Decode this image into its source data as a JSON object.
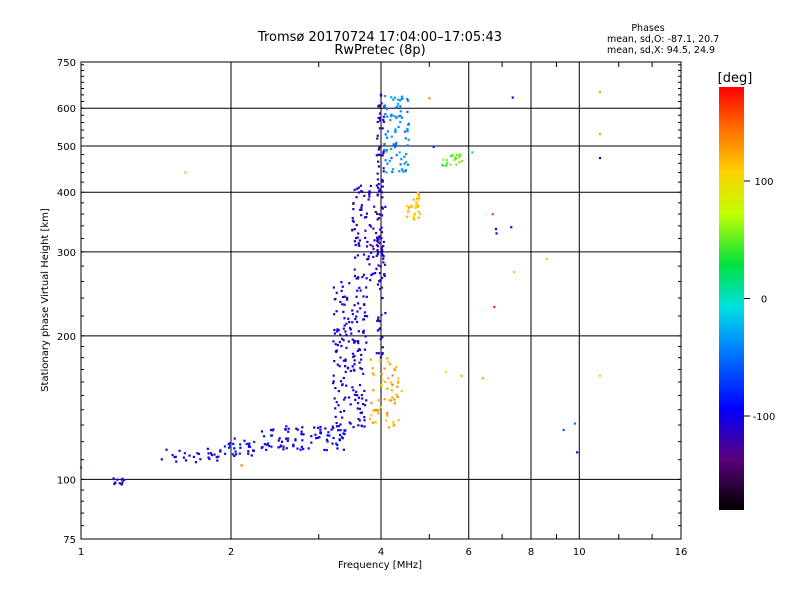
{
  "chart_data": {
    "type": "scatter",
    "title": "Tromsø 20170724 17:04:00–17:05:43",
    "subtitle": "RwPretec (8p)",
    "xlabel": "Frequency [MHz]",
    "ylabel": "Stationary phase Virtual Height [km]",
    "xscale": "log",
    "yscale": "log",
    "xlim": [
      1,
      16
    ],
    "ylim": [
      75,
      750
    ],
    "xticks": [
      1,
      2,
      4,
      6,
      8,
      10,
      16
    ],
    "yticks": [
      75,
      100,
      200,
      300,
      400,
      500,
      600,
      750
    ],
    "grid": true,
    "stats_box": {
      "heading": "Phases",
      "line_o": "mean, sd,O: -87.1, 20.7",
      "line_x": "mean, sd,X:  94.5, 24.9"
    },
    "colorbar": {
      "label": "[deg]",
      "range": [
        -180,
        180
      ],
      "ticks": [
        100,
        0,
        -100
      ]
    },
    "point_clusters": [
      {
        "name": "low-freq echoes",
        "fmin": 1.15,
        "fmax": 1.22,
        "hmin": 97,
        "hmax": 101,
        "phase": -110,
        "count": 12
      },
      {
        "name": "f-trace low band",
        "fmin": 1.45,
        "fmax": 1.9,
        "hmin": 108,
        "hmax": 116,
        "phase": -105,
        "count": 26
      },
      {
        "name": "f-trace 2 MHz",
        "fmin": 1.9,
        "fmax": 2.3,
        "hmin": 112,
        "hmax": 122,
        "phase": -95,
        "count": 30
      },
      {
        "name": "f-trace rising",
        "fmin": 2.3,
        "fmax": 3.4,
        "hmin": 115,
        "hmax": 130,
        "phase": -100,
        "count": 90
      },
      {
        "name": "cusp region",
        "fmin": 3.2,
        "fmax": 3.75,
        "hmin": 128,
        "hmax": 260,
        "phase": -110,
        "count": 170
      },
      {
        "name": "upper F trace",
        "fmin": 3.5,
        "fmax": 4.05,
        "hmin": 260,
        "hmax": 420,
        "phase": -115,
        "count": 110
      },
      {
        "name": "4 MHz vertical",
        "fmin": 3.92,
        "fmax": 4.08,
        "hmin": 180,
        "hmax": 650,
        "phase": -115,
        "count": 90
      },
      {
        "name": "x-mode 4.4 MHz",
        "fmin": 4.05,
        "fmax": 4.55,
        "hmin": 440,
        "hmax": 640,
        "phase": -40,
        "count": 80
      },
      {
        "name": "x-mode 4.6 MHz",
        "fmin": 4.5,
        "fmax": 4.8,
        "hmin": 350,
        "hmax": 400,
        "phase": 110,
        "count": 30
      },
      {
        "name": "x-mode lower band",
        "fmin": 3.8,
        "fmax": 4.4,
        "hmin": 128,
        "hmax": 180,
        "phase": 120,
        "count": 60
      },
      {
        "name": "scatter 5-6 MHz",
        "fmin": 5.3,
        "fmax": 5.9,
        "hmin": 455,
        "hmax": 480,
        "phase": 45,
        "count": 20
      }
    ],
    "isolated_points": [
      {
        "f": 1.62,
        "h": 440,
        "phase": 60
      },
      {
        "f": 1.0,
        "h": 106,
        "phase": 150
      },
      {
        "f": 2.1,
        "h": 107,
        "phase": 140
      },
      {
        "f": 5.1,
        "h": 498,
        "phase": -80
      },
      {
        "f": 5.0,
        "h": 630,
        "phase": 130
      },
      {
        "f": 6.1,
        "h": 485,
        "phase": 30
      },
      {
        "f": 6.7,
        "h": 360,
        "phase": 150
      },
      {
        "f": 6.8,
        "h": 335,
        "phase": -100
      },
      {
        "f": 6.82,
        "h": 328,
        "phase": -100
      },
      {
        "f": 7.3,
        "h": 338,
        "phase": -100
      },
      {
        "f": 7.35,
        "h": 632,
        "phase": -110
      },
      {
        "f": 7.4,
        "h": 272,
        "phase": 110
      },
      {
        "f": 8.6,
        "h": 290,
        "phase": 60
      },
      {
        "f": 6.75,
        "h": 230,
        "phase": 170
      },
      {
        "f": 5.4,
        "h": 168,
        "phase": 70
      },
      {
        "f": 5.8,
        "h": 165,
        "phase": 120
      },
      {
        "f": 6.4,
        "h": 163,
        "phase": 120
      },
      {
        "f": 9.3,
        "h": 127,
        "phase": -60
      },
      {
        "f": 9.8,
        "h": 131,
        "phase": -50
      },
      {
        "f": 9.9,
        "h": 114,
        "phase": -90
      },
      {
        "f": 11.0,
        "h": 472,
        "phase": -100
      },
      {
        "f": 11.0,
        "h": 530,
        "phase": 120
      },
      {
        "f": 11.0,
        "h": 650,
        "phase": 120
      },
      {
        "f": 11.0,
        "h": 165,
        "phase": 110
      }
    ]
  }
}
